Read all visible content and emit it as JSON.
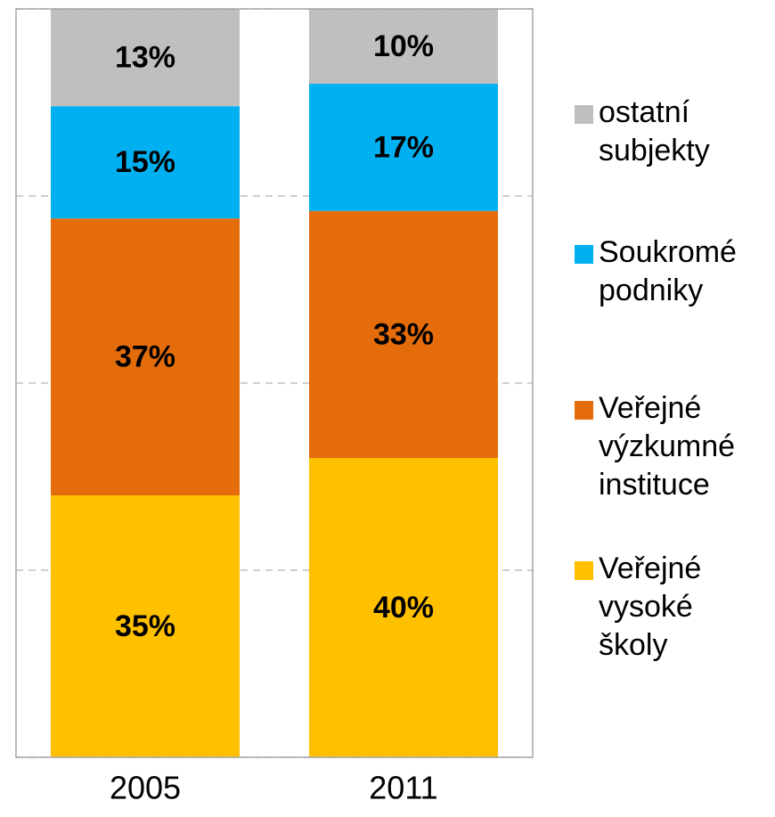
{
  "chart_data": {
    "type": "stacked_bar",
    "categories": [
      "2005",
      "2011"
    ],
    "series": [
      {
        "name": "Veřejné vysoké školy",
        "color": "#ffc000",
        "values": [
          35,
          40
        ],
        "value_labels": [
          "35%",
          "40%"
        ]
      },
      {
        "name": "Veřejné výzkumné instituce",
        "color": "#e46c0a",
        "values": [
          37,
          33
        ],
        "value_labels": [
          "37%",
          "33%"
        ]
      },
      {
        "name": "Soukromé podniky",
        "color": "#00b0f0",
        "values": [
          15,
          17
        ],
        "value_labels": [
          "15%",
          "17%"
        ]
      },
      {
        "name": "ostatní subjekty",
        "color": "#bfbfbf",
        "values": [
          13,
          10
        ],
        "value_labels": [
          "13%",
          "10%"
        ]
      }
    ],
    "ylim": [
      0,
      100
    ],
    "yticks": [
      0,
      25,
      50,
      75,
      100
    ],
    "grid": true,
    "legend": "right"
  }
}
